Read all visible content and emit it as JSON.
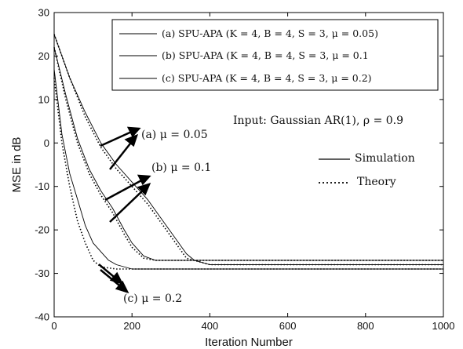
{
  "chart_data": {
    "type": "line",
    "xlabel": "Iteration Number",
    "ylabel": "MSE in dB",
    "xlim": [
      0,
      1000
    ],
    "ylim": [
      -40,
      30
    ],
    "xticks": [
      "0",
      "200",
      "400",
      "600",
      "800",
      "1000"
    ],
    "yticks": [
      "30",
      "20",
      "10",
      "0",
      "-10",
      "-20",
      "-30",
      "-40"
    ],
    "grid": false,
    "legend_position": "top-right",
    "legend": [
      "(a) SPU-APA (K = 4, B = 4, S = 3, μ = 0.05)",
      "(b) SPU-APA (K = 4, B = 4, S = 3, μ = 0.1",
      "(c) SPU-APA (K = 4, B = 4, S = 3, μ = 0.2)"
    ],
    "style_legend": {
      "solid": "Simulation",
      "dotted": "Theory"
    },
    "annotations": {
      "input": "Input: Gaussian AR(1), ρ = 0.9",
      "a": "(a) μ = 0.05",
      "b": "(b) μ = 0.1",
      "c": "(c) μ = 0.2"
    },
    "series": [
      {
        "name": "(a) SPU-APA (K = 4, B = 4, S = 3, μ = 0.05)",
        "kind": "simulation",
        "x": [
          0,
          40,
          80,
          120,
          160,
          200,
          240,
          280,
          320,
          340,
          360,
          400,
          500,
          600,
          700,
          800,
          900,
          1000
        ],
        "y": [
          25,
          15,
          7,
          0,
          -5,
          -9,
          -13,
          -18,
          -23,
          -25.5,
          -27,
          -28,
          -28,
          -28,
          -28,
          -28,
          -28,
          -28
        ]
      },
      {
        "name": "(a) SPU-APA (K = 4, B = 4, S = 3, μ = 0.05)",
        "kind": "theory",
        "x": [
          0,
          40,
          80,
          120,
          160,
          200,
          240,
          280,
          320,
          340,
          400,
          500,
          600,
          700,
          800,
          900,
          1000
        ],
        "y": [
          25,
          15,
          6,
          -1,
          -6,
          -10,
          -14,
          -19,
          -24,
          -26.5,
          -28,
          -28,
          -28,
          -28,
          -28,
          -28,
          -28
        ]
      },
      {
        "name": "(b) SPU-APA (K = 4, B = 4, S = 3, μ = 0.1",
        "kind": "simulation",
        "x": [
          0,
          30,
          60,
          90,
          120,
          150,
          180,
          200,
          230,
          260,
          300,
          400,
          500,
          600,
          700,
          800,
          900,
          1000
        ],
        "y": [
          22,
          11,
          1,
          -6,
          -11,
          -15,
          -20,
          -23,
          -26,
          -27,
          -27,
          -27,
          -27,
          -27,
          -27,
          -27,
          -27,
          -27
        ]
      },
      {
        "name": "(b) SPU-APA (K = 4, B = 4, S = 3, μ = 0.1",
        "kind": "theory",
        "x": [
          0,
          30,
          60,
          90,
          120,
          150,
          180,
          200,
          230,
          260,
          300,
          400,
          600,
          800,
          1000
        ],
        "y": [
          22,
          10,
          0,
          -7,
          -12,
          -16,
          -21,
          -24,
          -26.5,
          -27,
          -27,
          -27,
          -27,
          -27,
          -27
        ]
      },
      {
        "name": "(c) SPU-APA (K = 4, B = 4, S = 3, μ = 0.2)",
        "kind": "simulation",
        "x": [
          0,
          20,
          40,
          60,
          80,
          100,
          120,
          140,
          160,
          200,
          300,
          400,
          500,
          600,
          700,
          800,
          900,
          1000
        ],
        "y": [
          17,
          2,
          -7,
          -13,
          -19,
          -23,
          -25,
          -27,
          -28,
          -29,
          -29,
          -29,
          -29,
          -29,
          -29,
          -29,
          -29,
          -29
        ]
      },
      {
        "name": "(c) SPU-APA (K = 4, B = 4, S = 3, μ = 0.2)",
        "kind": "theory",
        "x": [
          0,
          20,
          40,
          60,
          80,
          100,
          120,
          160,
          200,
          300,
          400,
          600,
          800,
          1000
        ],
        "y": [
          15,
          0,
          -10,
          -18,
          -23,
          -27,
          -28.5,
          -29,
          -29,
          -29,
          -29,
          -29,
          -29,
          -29
        ]
      }
    ]
  }
}
